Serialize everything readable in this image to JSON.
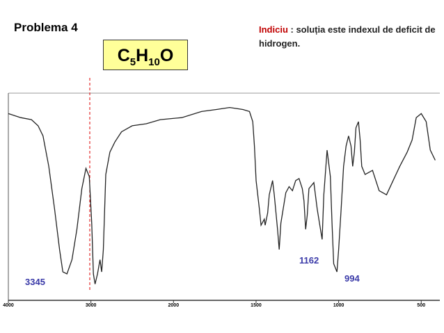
{
  "title": "Problema 4",
  "formula": {
    "parts": [
      "C",
      "5",
      "H",
      "10",
      "O"
    ]
  },
  "hint": {
    "label": "Indiciu",
    "text": ": soluția este indexul de deficit de hidrogen."
  },
  "chart_data": {
    "type": "line",
    "annotations": [
      "3345",
      "1162",
      "994"
    ],
    "xlim": [
      4000,
      400
    ],
    "ylim": [
      0,
      100
    ],
    "xticks": [
      4000,
      3000,
      2000,
      1500,
      1000,
      500
    ],
    "series": [
      {
        "color": "#222222",
        "x": [
          4000,
          3850,
          3720,
          3640,
          3580,
          3510,
          3440,
          3380,
          3340,
          3290,
          3230,
          3170,
          3110,
          3060,
          3020,
          2990,
          2970,
          2950,
          2920,
          2890,
          2870,
          2850,
          2820,
          2770,
          2710,
          2630,
          2500,
          2330,
          2160,
          1950,
          1830,
          1740,
          1660,
          1580,
          1540,
          1520,
          1510,
          1500,
          1480,
          1470,
          1450,
          1445,
          1430,
          1420,
          1400,
          1390,
          1370,
          1360,
          1350,
          1320,
          1300,
          1280,
          1260,
          1240,
          1220,
          1210,
          1200,
          1190,
          1180,
          1150,
          1130,
          1110,
          1100,
          1090,
          1070,
          1050,
          1040,
          1030,
          1010,
          1000,
          985,
          970,
          955,
          940,
          925,
          915,
          905,
          895,
          880,
          870,
          860,
          840,
          795,
          755,
          710,
          670,
          630,
          585,
          555,
          530,
          500,
          470,
          445,
          415
        ],
        "values": [
          92,
          90,
          89,
          86,
          81,
          66,
          45,
          25,
          14,
          13,
          20,
          35,
          55,
          65,
          61,
          38,
          13,
          8,
          13,
          20,
          14,
          25,
          62,
          73,
          78,
          83,
          86,
          87,
          89,
          90,
          93,
          94,
          95,
          94,
          93,
          88,
          76,
          59,
          45,
          37,
          40,
          37,
          43,
          52,
          59,
          52,
          35,
          25,
          38,
          53,
          56,
          54,
          59,
          60,
          55,
          49,
          35,
          42,
          55,
          58,
          45,
          35,
          30,
          52,
          74,
          61,
          38,
          18,
          14,
          25,
          45,
          66,
          76,
          81,
          76,
          66,
          73,
          85,
          88,
          79,
          66,
          62,
          64,
          54,
          52,
          59,
          66,
          73,
          79,
          90,
          92,
          88,
          74,
          69
        ]
      }
    ]
  }
}
